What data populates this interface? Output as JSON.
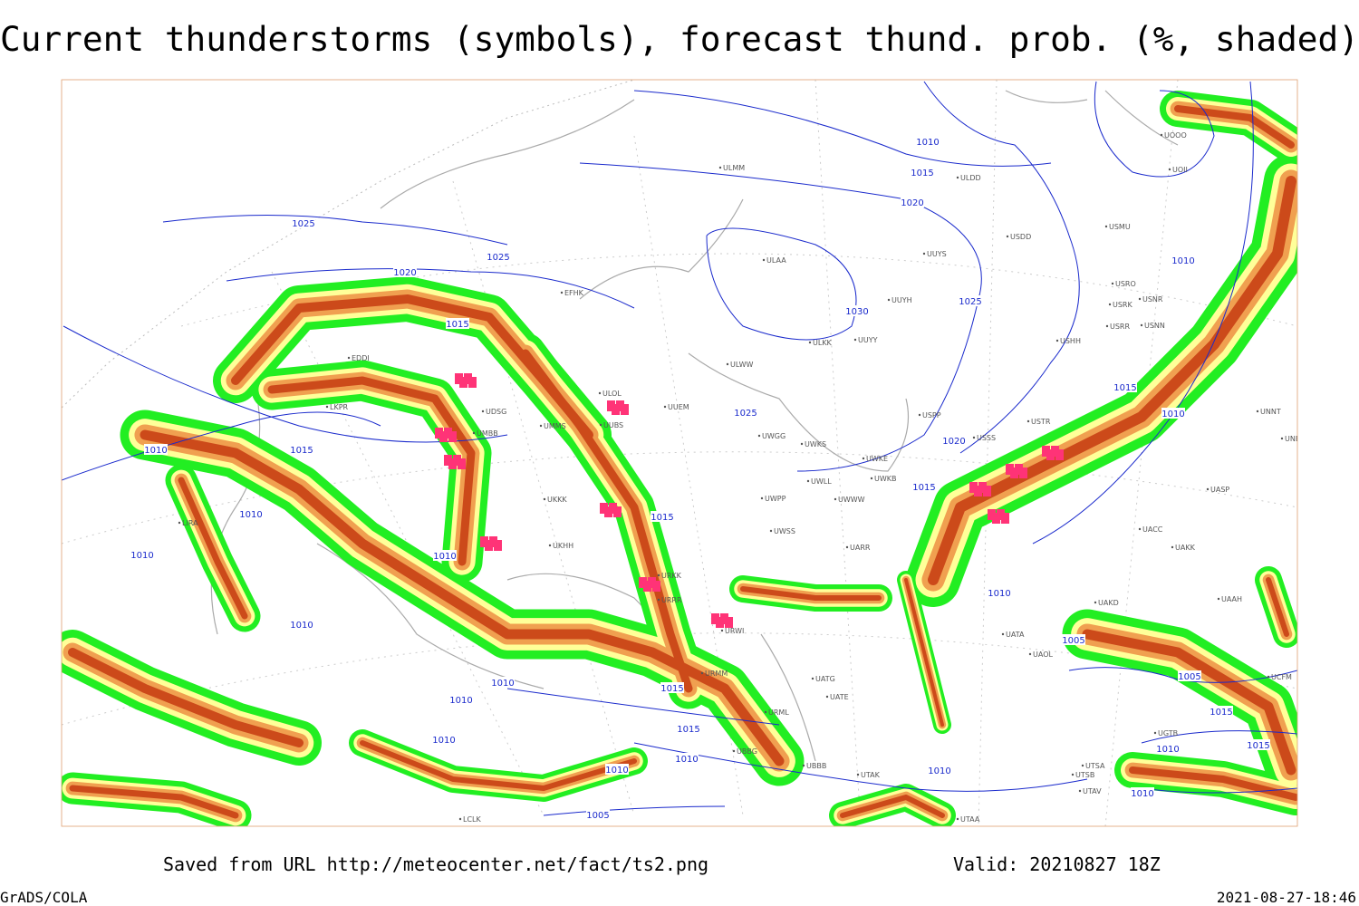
{
  "title": "Current thunderstorms (symbols), forecast thund. prob. (%, shaded)",
  "footer": {
    "saved": "Saved from URL http://meteocenter.net/fact/ts2.png",
    "valid": "Valid: 20210827 18Z",
    "software": "GrADS/COLA",
    "timestamp": "2021-08-27-18:46"
  },
  "isobars": [
    1025,
    1025,
    1020,
    1015,
    1010,
    1015,
    1010,
    1010,
    1010,
    1010,
    1015,
    1025,
    1030,
    1025,
    1020,
    1015,
    1010,
    1020,
    1015,
    1010,
    1010,
    1015,
    1010,
    1005,
    1005,
    1015,
    1015,
    1010,
    1010,
    1010,
    1010,
    1010,
    1015,
    1015,
    1010,
    1010,
    1010,
    1005
  ],
  "stations": [
    "ULMM",
    "ULDD",
    "UOOO",
    "UOII",
    "ULAA",
    "UUYS",
    "USDD",
    "USMU",
    "UUYH",
    "USRO",
    "USRK",
    "USNR",
    "USRR",
    "USNN",
    "ULKK",
    "UUYY",
    "USHH",
    "ULWW",
    "UUEM",
    "UUBS",
    "ULOL",
    "UMMS",
    "UMBB",
    "UWGG",
    "UWKS",
    "USPP",
    "USSS",
    "USTR",
    "UWKE",
    "UWKB",
    "UWLL",
    "UWWW",
    "UWPP",
    "UWSS",
    "UARR",
    "UKKK",
    "UKHH",
    "LIRA",
    "LKPR",
    "EDDI",
    "EFHK",
    "UAKK",
    "UACC",
    "UASP",
    "UNNT",
    "UNBB",
    "UAKD",
    "UATA",
    "UAOL",
    "UAAH",
    "UTAK",
    "UTAA",
    "UTSA",
    "UTSB",
    "UTAV",
    "UBBB",
    "URML",
    "URMM",
    "URWI",
    "URKK",
    "URRR",
    "UATE",
    "UATG",
    "UCFM",
    "UDSG",
    "UBBG",
    "UGTB",
    "LCLK"
  ]
}
